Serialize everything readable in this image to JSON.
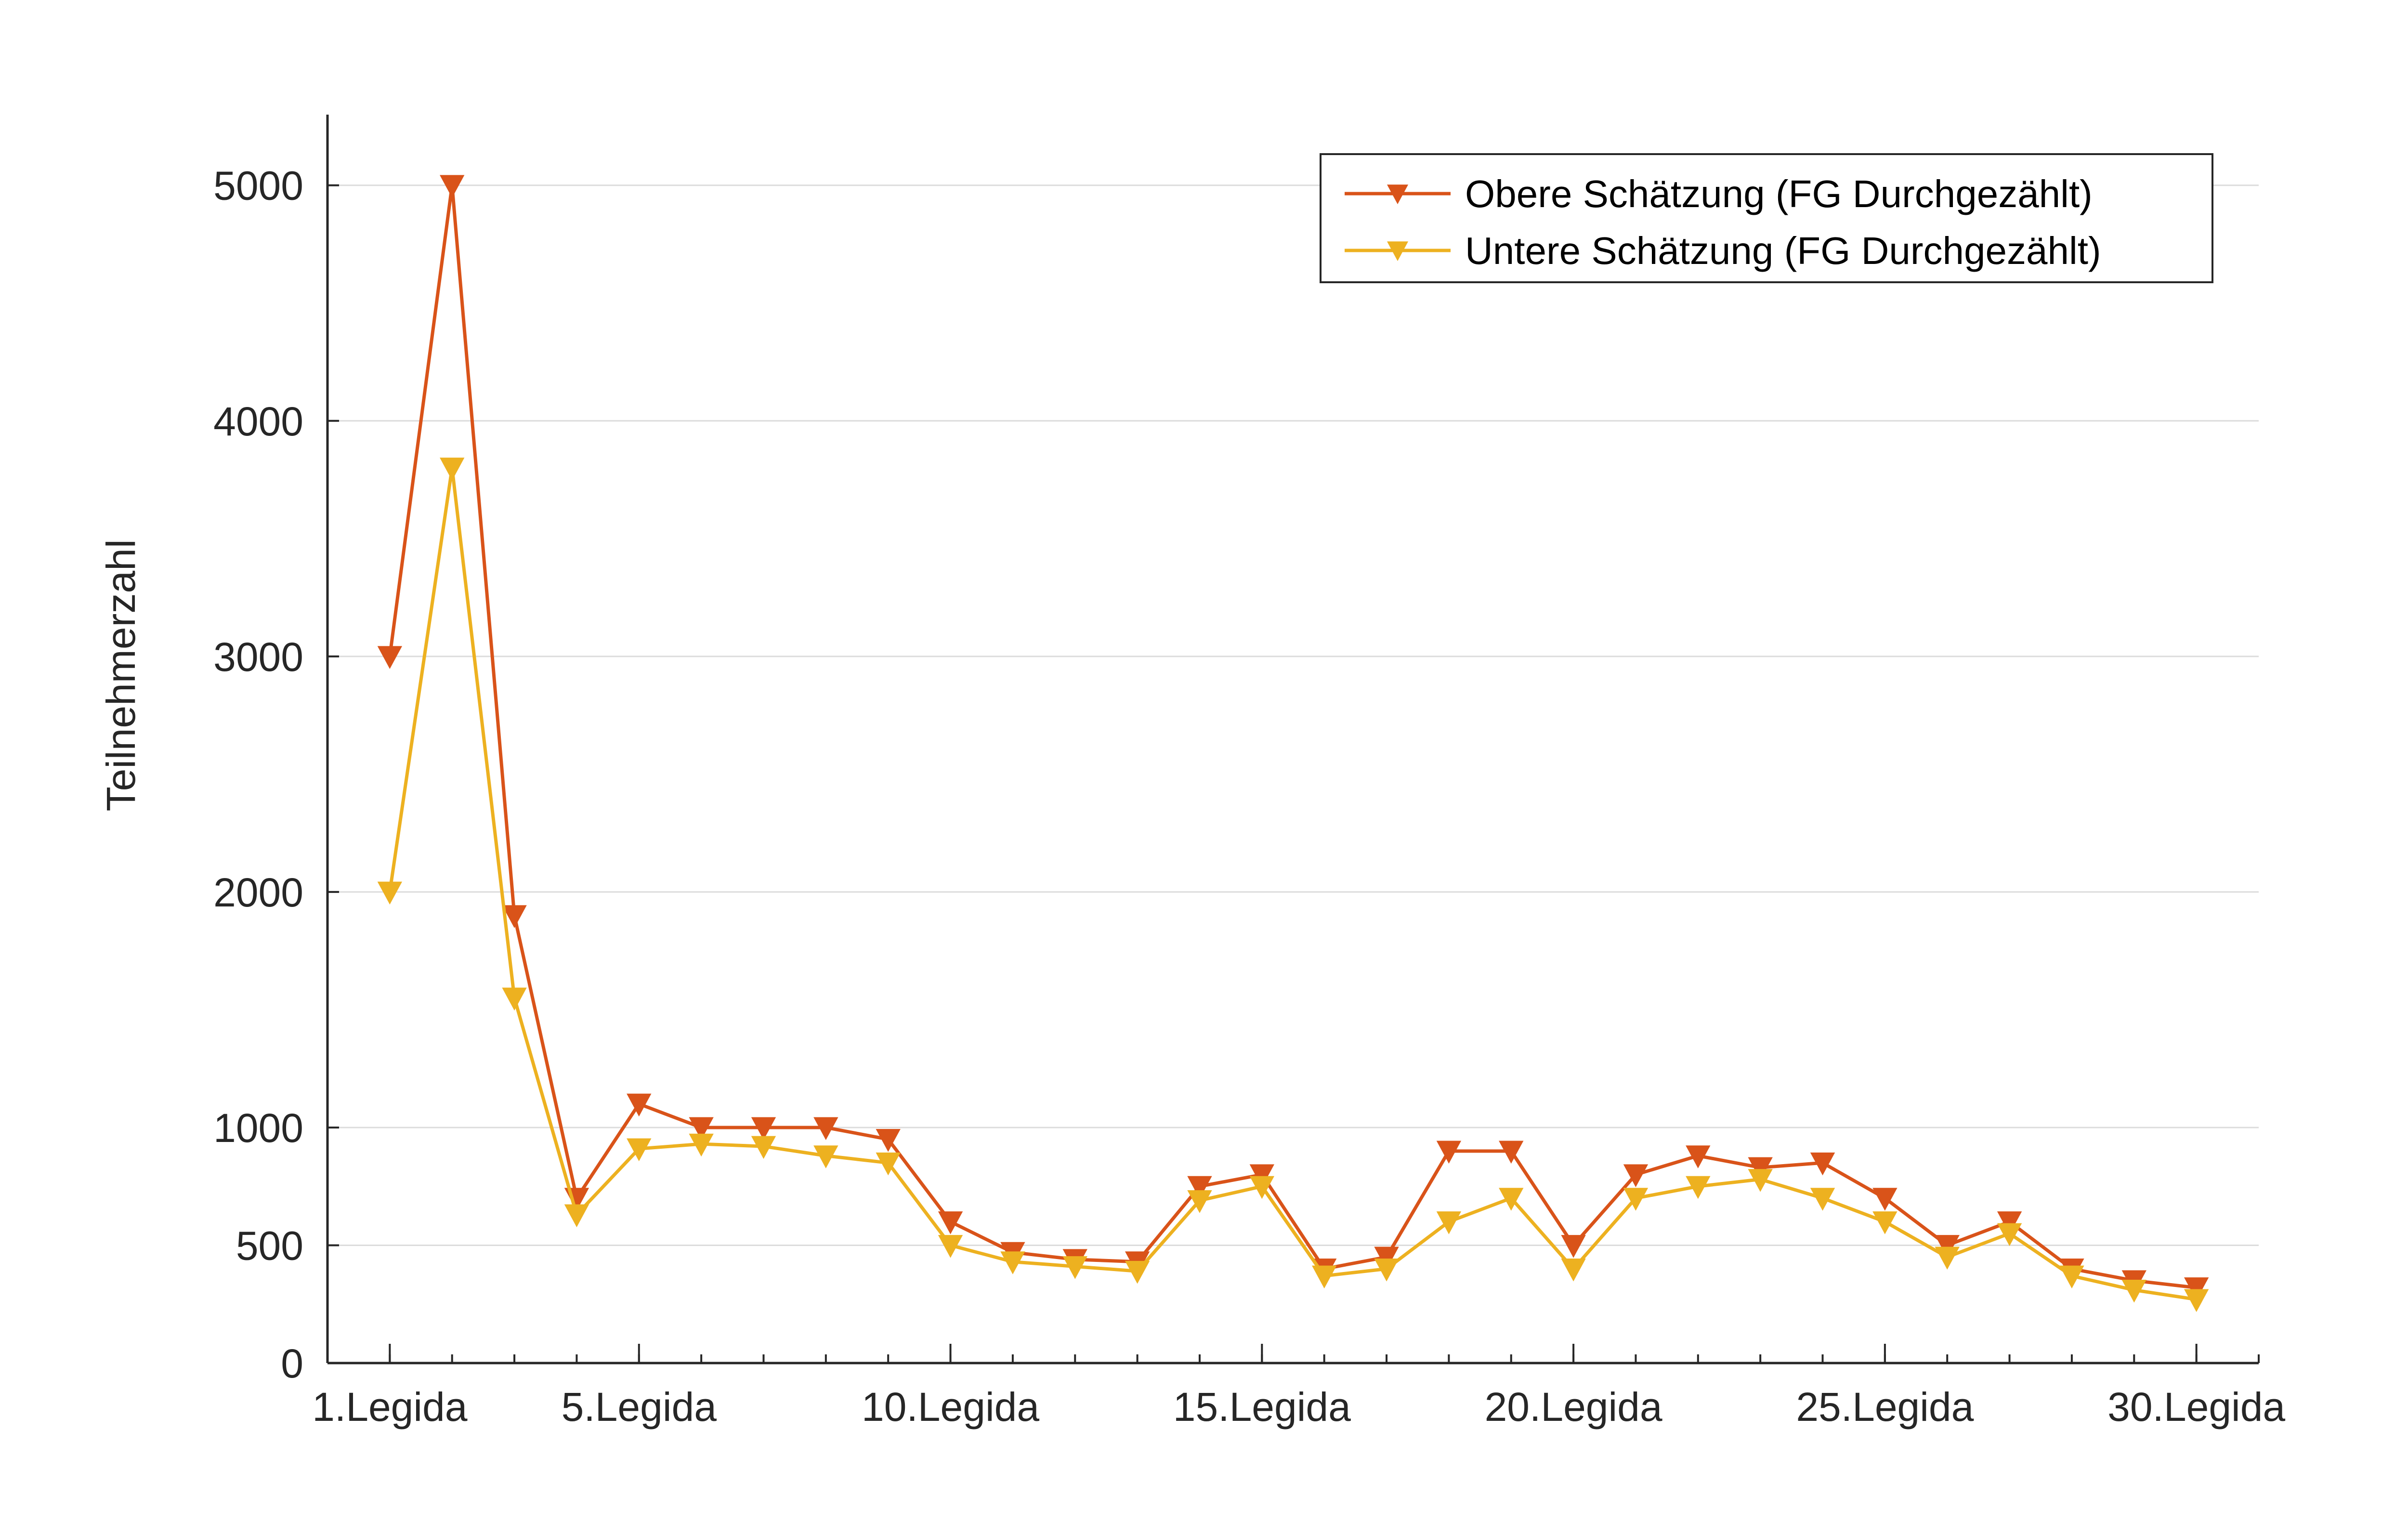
{
  "chart_data": {
    "type": "line",
    "title": "",
    "xlabel": "",
    "ylabel": "Teilnehmerzahl",
    "x": [
      1,
      2,
      3,
      4,
      5,
      6,
      7,
      8,
      9,
      10,
      11,
      12,
      13,
      14,
      15,
      16,
      17,
      18,
      19,
      20,
      21,
      22,
      23,
      24,
      25,
      26,
      27,
      28,
      29,
      30
    ],
    "x_tick_values": [
      1,
      5,
      10,
      15,
      20,
      25,
      30
    ],
    "x_tick_labels": [
      "1.Legida",
      "5.Legida",
      "10.Legida",
      "15.Legida",
      "20.Legida",
      "25.Legida",
      "30.Legida"
    ],
    "xlim": [
      0,
      31
    ],
    "y_ticks": [
      0,
      500,
      1000,
      2000,
      3000,
      4000,
      5000
    ],
    "y_tick_labels": [
      "0",
      "500",
      "1000",
      "2000",
      "3000",
      "4000",
      "5000"
    ],
    "ylim": [
      0,
      5300
    ],
    "grid": "y",
    "legend_position": "top-right",
    "series": [
      {
        "name": "Obere Schätzung (FG Durchgezählt)",
        "color": "#d95319",
        "marker": "triangle-down",
        "values": [
          3000,
          5000,
          1900,
          700,
          1100,
          1000,
          1000,
          1000,
          950,
          600,
          470,
          440,
          430,
          750,
          800,
          400,
          450,
          900,
          900,
          500,
          800,
          880,
          830,
          850,
          700,
          500,
          600,
          400,
          350,
          320
        ]
      },
      {
        "name": "Untere Schätzung (FG Durchgezählt)",
        "color": "#edb120",
        "marker": "triangle-down",
        "values": [
          2000,
          3800,
          1550,
          630,
          910,
          930,
          920,
          880,
          850,
          500,
          430,
          410,
          390,
          690,
          750,
          370,
          400,
          600,
          700,
          400,
          700,
          750,
          780,
          700,
          600,
          450,
          550,
          370,
          310,
          270
        ]
      }
    ]
  }
}
